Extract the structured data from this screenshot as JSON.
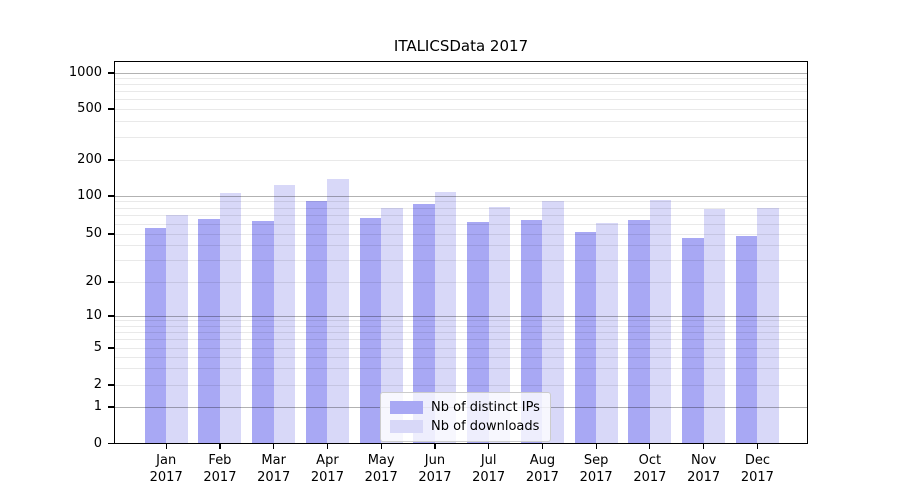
{
  "title": "ITALICSData 2017",
  "chart_data": {
    "type": "bar",
    "title": "ITALICSData 2017",
    "categories": [
      "Jan 2017",
      "Feb 2017",
      "Mar 2017",
      "Apr 2017",
      "May 2017",
      "Jun 2017",
      "Jul 2017",
      "Aug 2017",
      "Sep 2017",
      "Oct 2017",
      "Nov 2017",
      "Dec 2017"
    ],
    "series": [
      {
        "name": "Nb of distinct IPs",
        "color": "#a8a8f4",
        "values": [
          56,
          66,
          63,
          91,
          67,
          87,
          62,
          64,
          52,
          64,
          46,
          48
        ]
      },
      {
        "name": "Nb of downloads",
        "color": "#d8d8f8",
        "values": [
          71,
          105,
          124,
          139,
          81,
          107,
          82,
          91,
          61,
          93,
          79,
          81
        ]
      }
    ],
    "xlabel": "",
    "ylabel": "",
    "yscale": "symlog",
    "y_ticks": [
      0,
      1,
      2,
      5,
      10,
      20,
      50,
      100,
      200,
      500,
      1000
    ],
    "ylim": [
      0,
      1300
    ],
    "grid": true,
    "legend_position": "lower center",
    "colors": {
      "bar_distinct_ips": "#a8a8f4",
      "bar_downloads": "#d8d8f8",
      "major_grid": "#b4b4b4",
      "minor_grid": "#e9e9e9",
      "spine": "#000000",
      "background": "#ffffff"
    }
  }
}
